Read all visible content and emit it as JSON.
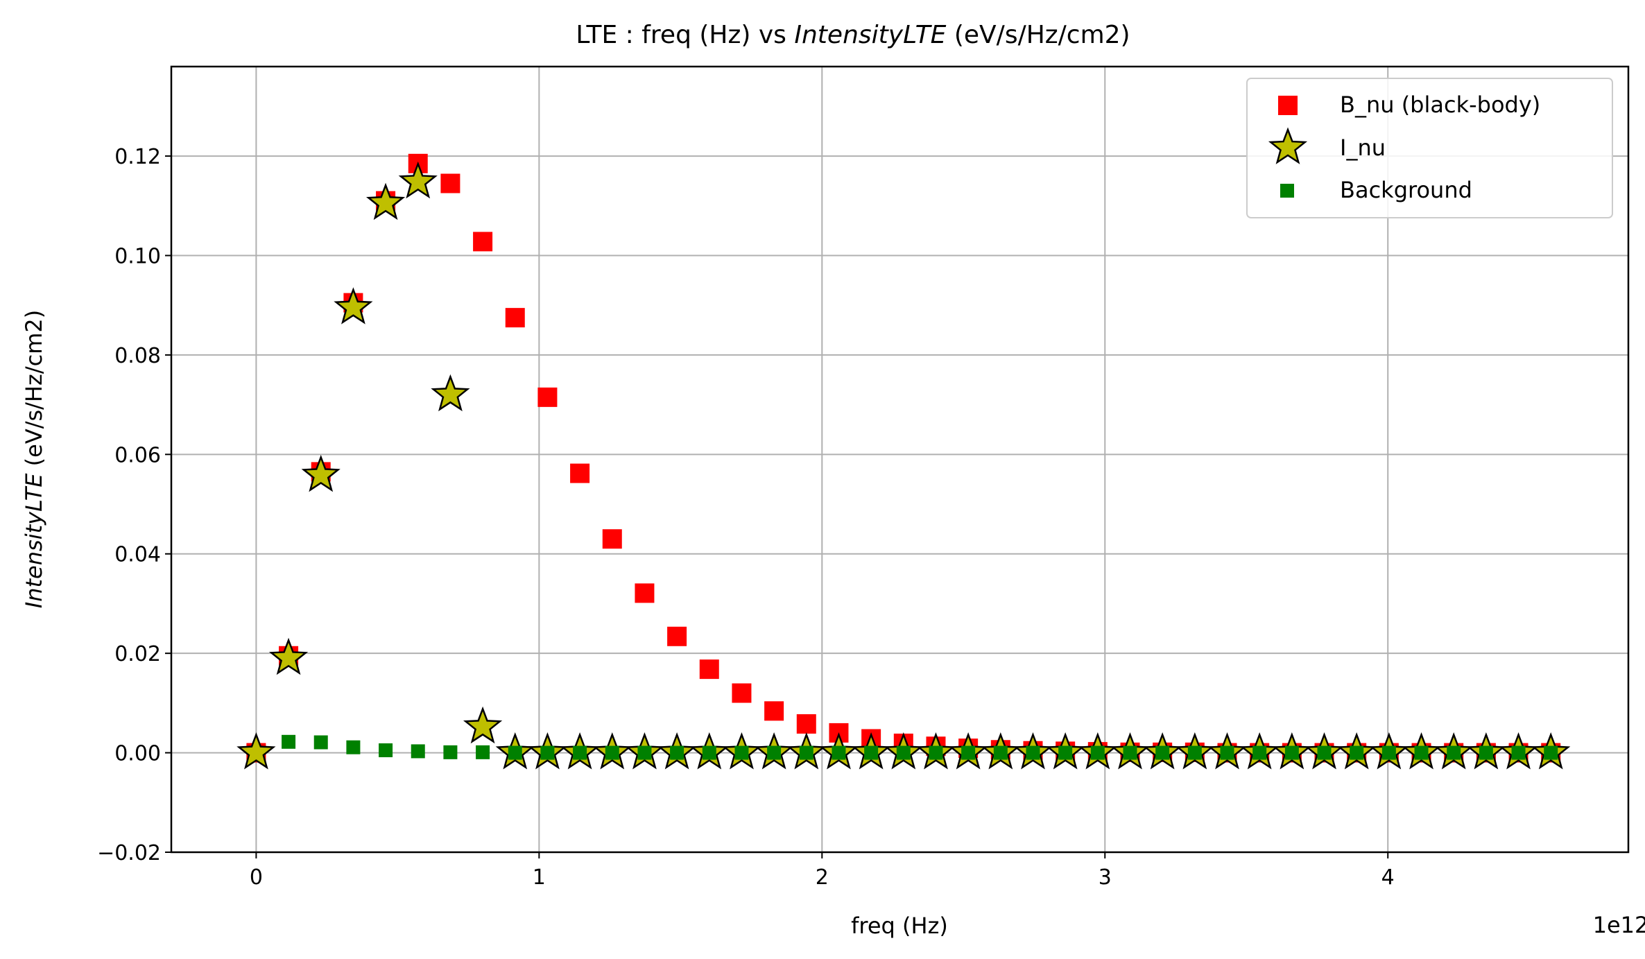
{
  "chart_data": {
    "type": "scatter",
    "title_prefix": "LTE : freq (Hz) vs ",
    "title_italic": "IntensityLTE",
    "title_suffix": " (eV/s/Hz/cm2)",
    "xlabel": "freq (Hz)",
    "ylabel_italic": "IntensityLTE",
    "ylabel_suffix": " (eV/s/Hz/cm2)",
    "x_offset_label": "1e12",
    "x_scale": 1000000000000.0,
    "xlim": [
      -0.3,
      4.85
    ],
    "ylim": [
      -0.02,
      0.138
    ],
    "xticks": [
      0,
      1,
      2,
      3,
      4
    ],
    "xtick_labels": [
      "0",
      "1",
      "2",
      "3",
      "4"
    ],
    "yticks": [
      -0.02,
      0.0,
      0.02,
      0.04,
      0.06,
      0.08,
      0.1,
      0.12
    ],
    "ytick_labels": [
      "−0.02",
      "0.00",
      "0.02",
      "0.04",
      "0.06",
      "0.08",
      "0.10",
      "0.12"
    ],
    "grid": true,
    "legend_position": "top-right",
    "series": [
      {
        "name": "B_nu (black-body)",
        "marker": "square",
        "color": "#ff0000",
        "x": [
          0,
          0.1144,
          0.2288,
          0.3432,
          0.4576,
          0.572,
          0.6864,
          0.8008,
          0.9152,
          1.0296,
          1.144,
          1.2584,
          1.3728,
          1.4872,
          1.6016,
          1.716,
          1.8304,
          1.9448,
          2.0592,
          2.1736,
          2.288,
          2.4024,
          2.5168,
          2.6312,
          2.7456,
          2.86,
          2.9744,
          3.0888,
          3.2032,
          3.3176,
          3.432,
          3.5464,
          3.6608,
          3.7752,
          3.8896,
          4.004,
          4.1184,
          4.2328,
          4.3472,
          4.4616,
          4.576
        ],
        "values": [
          0.0,
          0.0195,
          0.0565,
          0.0905,
          0.111,
          0.1185,
          0.1145,
          0.1028,
          0.0875,
          0.0715,
          0.0562,
          0.043,
          0.0321,
          0.0234,
          0.0168,
          0.012,
          0.0084,
          0.0058,
          0.004,
          0.0028,
          0.0019,
          0.0013,
          0.0009,
          0.0006,
          0.0004,
          0.0003,
          0.0002,
          0.0001,
          0.0001,
          0.0001,
          0.0,
          0.0,
          0.0,
          0.0,
          0.0,
          0.0,
          0.0,
          0.0,
          0.0,
          0.0,
          0.0
        ]
      },
      {
        "name": "I_nu",
        "marker": "star",
        "color": "#bfbf00",
        "edgecolor": "#000000",
        "x": [
          0,
          0.1144,
          0.2288,
          0.3432,
          0.4576,
          0.572,
          0.6864,
          0.8008,
          0.9152,
          1.0296,
          1.144,
          1.2584,
          1.3728,
          1.4872,
          1.6016,
          1.716,
          1.8304,
          1.9448,
          2.0592,
          2.1736,
          2.288,
          2.4024,
          2.5168,
          2.6312,
          2.7456,
          2.86,
          2.9744,
          3.0888,
          3.2032,
          3.3176,
          3.432,
          3.5464,
          3.6608,
          3.7752,
          3.8896,
          4.004,
          4.1184,
          4.2328,
          4.3472,
          4.4616,
          4.576
        ],
        "values": [
          0.0,
          0.019,
          0.0558,
          0.0895,
          0.1105,
          0.1148,
          0.072,
          0.0052,
          0.0,
          0.0,
          0.0,
          0.0,
          0.0,
          0.0,
          0.0,
          0.0,
          0.0,
          0.0,
          0.0,
          0.0,
          0.0,
          0.0,
          0.0,
          0.0,
          0.0,
          0.0,
          0.0,
          0.0,
          0.0,
          0.0,
          0.0,
          0.0,
          0.0,
          0.0,
          0.0,
          0.0,
          0.0,
          0.0,
          0.0,
          0.0,
          0.0
        ]
      },
      {
        "name": "Background",
        "marker": "square-small",
        "color": "#008000",
        "x": [
          0,
          0.1144,
          0.2288,
          0.3432,
          0.4576,
          0.572,
          0.6864,
          0.8008,
          0.9152,
          1.0296,
          1.144,
          1.2584,
          1.3728,
          1.4872,
          1.6016,
          1.716,
          1.8304,
          1.9448,
          2.0592,
          2.1736,
          2.288,
          2.4024,
          2.5168,
          2.6312,
          2.7456,
          2.86,
          2.9744,
          3.0888,
          3.2032,
          3.3176,
          3.432,
          3.5464,
          3.6608,
          3.7752,
          3.8896,
          4.004,
          4.1184,
          4.2328,
          4.3472,
          4.4616,
          4.576
        ],
        "values": [
          0.0,
          0.0022,
          0.0021,
          0.0011,
          0.0005,
          0.0003,
          0.0001,
          0.0001,
          0.0,
          0.0,
          0.0,
          0.0,
          0.0,
          0.0,
          0.0,
          0.0,
          0.0,
          0.0,
          0.0,
          0.0,
          0.0,
          0.0,
          0.0,
          0.0,
          0.0,
          0.0,
          0.0,
          0.0,
          0.0,
          0.0,
          0.0,
          0.0,
          0.0,
          0.0,
          0.0,
          0.0,
          0.0,
          0.0,
          0.0,
          0.0,
          0.0
        ]
      }
    ]
  }
}
